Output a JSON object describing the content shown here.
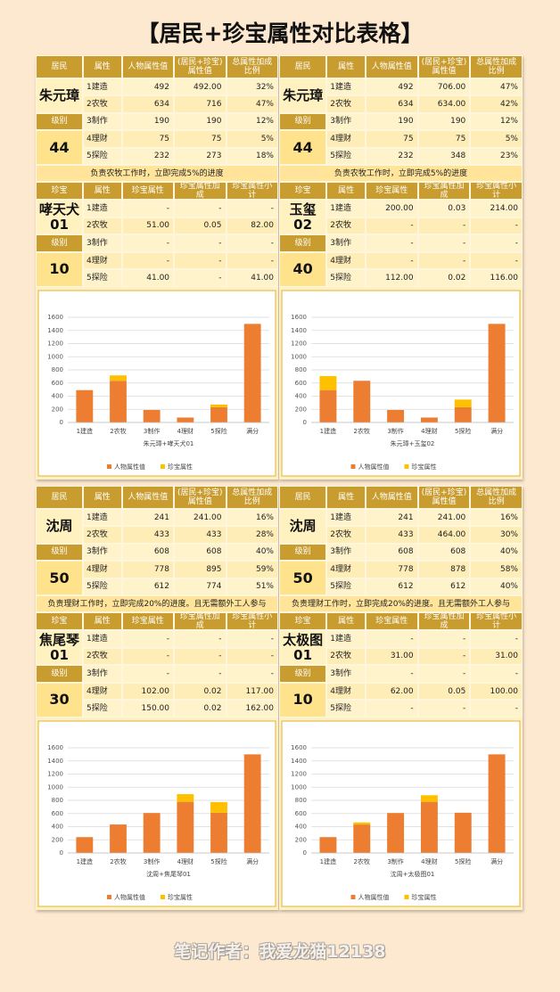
{
  "title": "【居民+珍宝属性对比表格】",
  "resident_headers": [
    "居民",
    "属性",
    "人物属性值",
    "(居民+珍宝)属性值",
    "总属性加成比例"
  ],
  "treasure_headers": [
    "珍宝",
    "属性",
    "珍宝属性",
    "珍宝属性加成",
    "珍宝属性小计"
  ],
  "level_label": "级别",
  "panels": [
    {
      "resident": {
        "name": "朱元璋",
        "level": "44",
        "rows": [
          [
            "1建造",
            "492",
            "492.00",
            "32%"
          ],
          [
            "2农牧",
            "634",
            "716",
            "47%"
          ],
          [
            "3制作",
            "190",
            "190",
            "12%"
          ],
          [
            "4理财",
            "75",
            "75",
            "5%"
          ],
          [
            "5探险",
            "232",
            "273",
            "18%"
          ]
        ]
      },
      "note": "负责农牧工作时，立即完成5%的进度",
      "treasure": {
        "name": "哮天犬",
        "number": "01",
        "level": "10",
        "rows": [
          [
            "1建造",
            "-",
            "-",
            "-"
          ],
          [
            "2农牧",
            "51.00",
            "0.05",
            "82.00"
          ],
          [
            "3制作",
            "-",
            "-",
            "-"
          ],
          [
            "4理财",
            "-",
            "-",
            "-"
          ],
          [
            "5探险",
            "41.00",
            "-",
            "41.00"
          ]
        ]
      }
    },
    {
      "resident": {
        "name": "朱元璋",
        "level": "44",
        "rows": [
          [
            "1建造",
            "492",
            "706.00",
            "47%"
          ],
          [
            "2农牧",
            "634",
            "634.00",
            "42%"
          ],
          [
            "3制作",
            "190",
            "190",
            "12%"
          ],
          [
            "4理财",
            "75",
            "75",
            "5%"
          ],
          [
            "5探险",
            "232",
            "348",
            "23%"
          ]
        ]
      },
      "note": "负责农牧工作时，立即完成5%的进度",
      "treasure": {
        "name": "玉玺",
        "number": "02",
        "level": "40",
        "rows": [
          [
            "1建造",
            "200.00",
            "0.03",
            "214.00"
          ],
          [
            "2农牧",
            "-",
            "-",
            "-"
          ],
          [
            "3制作",
            "-",
            "-",
            "-"
          ],
          [
            "4理财",
            "-",
            "-",
            "-"
          ],
          [
            "5探险",
            "112.00",
            "0.02",
            "116.00"
          ]
        ]
      }
    },
    {
      "resident": {
        "name": "沈周",
        "level": "50",
        "rows": [
          [
            "1建造",
            "241",
            "241.00",
            "16%"
          ],
          [
            "2农牧",
            "433",
            "433",
            "28%"
          ],
          [
            "3制作",
            "608",
            "608",
            "40%"
          ],
          [
            "4理财",
            "778",
            "895",
            "59%"
          ],
          [
            "5探险",
            "612",
            "774",
            "51%"
          ]
        ]
      },
      "note": "负责理财工作时，立即完成20%的进度。且无需额外工人参与",
      "treasure": {
        "name": "焦尾琴",
        "number": "01",
        "level": "30",
        "rows": [
          [
            "1建造",
            "-",
            "-",
            "-"
          ],
          [
            "2农牧",
            "-",
            "-",
            "-"
          ],
          [
            "3制作",
            "-",
            "-",
            "-"
          ],
          [
            "4理财",
            "102.00",
            "0.02",
            "117.00"
          ],
          [
            "5探险",
            "150.00",
            "0.02",
            "162.00"
          ]
        ]
      }
    },
    {
      "resident": {
        "name": "沈周",
        "level": "50",
        "rows": [
          [
            "1建造",
            "241",
            "241.00",
            "16%"
          ],
          [
            "2农牧",
            "433",
            "464.00",
            "30%"
          ],
          [
            "3制作",
            "608",
            "608",
            "40%"
          ],
          [
            "4理财",
            "778",
            "878",
            "58%"
          ],
          [
            "5探险",
            "612",
            "612",
            "40%"
          ]
        ]
      },
      "note": "负责理财工作时，立即完成20%的进度。且无需额外工人参与",
      "treasure": {
        "name": "太极图",
        "number": "01",
        "level": "10",
        "rows": [
          [
            "1建造",
            "-",
            "-",
            "-"
          ],
          [
            "2农牧",
            "31.00",
            "-",
            "31.00"
          ],
          [
            "3制作",
            "-",
            "-",
            "-"
          ],
          [
            "4理财",
            "62.00",
            "0.05",
            "100.00"
          ],
          [
            "5探险",
            "-",
            "-",
            "-"
          ]
        ]
      }
    }
  ],
  "chart_data": [
    {
      "type": "bar",
      "stacked": true,
      "x_label": "朱元璋+哮天犬01",
      "categories": [
        "1建造",
        "2农牧",
        "3制作",
        "4理财",
        "5探险",
        "满分"
      ],
      "series": [
        {
          "name": "人物属性值",
          "color": "#ed7d31",
          "values": [
            492,
            634,
            190,
            75,
            232,
            1500
          ]
        },
        {
          "name": "珍宝属性",
          "color": "#ffc000",
          "values": [
            null,
            82,
            null,
            null,
            41,
            null
          ]
        }
      ],
      "ylim": [
        0,
        1600
      ],
      "yticks": [
        0,
        200,
        400,
        600,
        800,
        1000,
        1200,
        1400,
        1600
      ],
      "grid": true,
      "legend": "bottom"
    },
    {
      "type": "bar",
      "stacked": true,
      "x_label": "朱元璋+玉玺02",
      "categories": [
        "1建造",
        "2农牧",
        "3制作",
        "4理财",
        "5探险",
        "满分"
      ],
      "series": [
        {
          "name": "人物属性值",
          "color": "#ed7d31",
          "values": [
            492,
            634,
            190,
            75,
            232,
            1500
          ]
        },
        {
          "name": "珍宝属性",
          "color": "#ffc000",
          "values": [
            214,
            null,
            null,
            null,
            116,
            null
          ]
        }
      ],
      "ylim": [
        0,
        1600
      ],
      "yticks": [
        0,
        200,
        400,
        600,
        800,
        1000,
        1200,
        1400,
        1600
      ],
      "grid": true,
      "legend": "bottom"
    },
    {
      "type": "bar",
      "stacked": true,
      "x_label": "沈周+焦尾琴01",
      "categories": [
        "1建造",
        "2农牧",
        "3制作",
        "4理财",
        "5探险",
        "满分"
      ],
      "series": [
        {
          "name": "人物属性值",
          "color": "#ed7d31",
          "values": [
            241,
            433,
            608,
            778,
            612,
            1500
          ]
        },
        {
          "name": "珍宝属性",
          "color": "#ffc000",
          "values": [
            null,
            null,
            null,
            117,
            162,
            null
          ]
        }
      ],
      "ylim": [
        0,
        1600
      ],
      "yticks": [
        0,
        200,
        400,
        600,
        800,
        1000,
        1200,
        1400,
        1600
      ],
      "grid": true,
      "legend": "bottom"
    },
    {
      "type": "bar",
      "stacked": true,
      "x_label": "沈周+太极图01",
      "categories": [
        "1建造",
        "2农牧",
        "3制作",
        "4理财",
        "5探险",
        "满分"
      ],
      "series": [
        {
          "name": "人物属性值",
          "color": "#ed7d31",
          "values": [
            241,
            433,
            608,
            778,
            612,
            1500
          ]
        },
        {
          "name": "珍宝属性",
          "color": "#ffc000",
          "values": [
            null,
            31,
            null,
            100,
            null,
            null
          ]
        }
      ],
      "ylim": [
        0,
        1600
      ],
      "yticks": [
        0,
        200,
        400,
        600,
        800,
        1000,
        1200,
        1400,
        1600
      ],
      "grid": true,
      "legend": "bottom"
    }
  ],
  "footer": "笔记作者：我爱龙猫12138"
}
